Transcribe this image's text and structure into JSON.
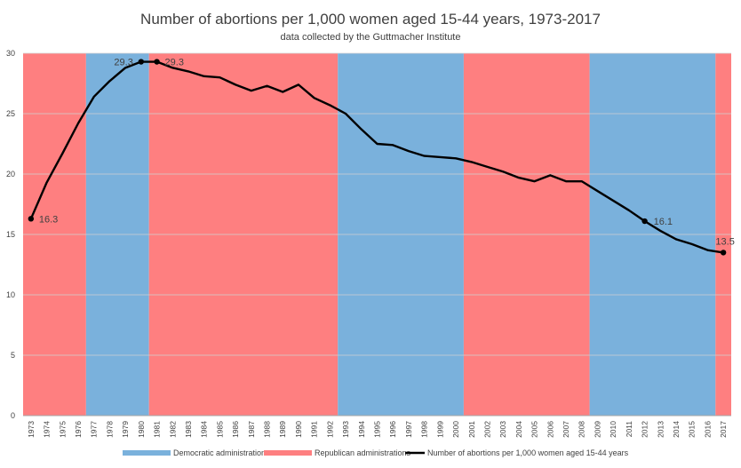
{
  "chart_data": {
    "type": "line",
    "title": "Number of abortions per 1,000 women aged 15-44 years, 1973-2017",
    "subtitle": "data collected by the Guttmacher  Institute",
    "ylim": [
      0,
      30
    ],
    "yticks": [
      "0",
      "5",
      "10",
      "15",
      "20",
      "25",
      "30"
    ],
    "grid": true,
    "legend_position": "bottom",
    "categories": [
      "1973",
      "1974",
      "1975",
      "1976",
      "1977",
      "1978",
      "1979",
      "1980",
      "1981",
      "1982",
      "1983",
      "1984",
      "1985",
      "1986",
      "1987",
      "1988",
      "1989",
      "1990",
      "1991",
      "1992",
      "1993",
      "1994",
      "1995",
      "1996",
      "1997",
      "1998",
      "1999",
      "2000",
      "2001",
      "2002",
      "2003",
      "2004",
      "2005",
      "2006",
      "2007",
      "2008",
      "2009",
      "2010",
      "2011",
      "2012",
      "2013",
      "2014",
      "2015",
      "2016",
      "2017"
    ],
    "series": [
      {
        "name": "Number of abortions per 1,000 women aged 15-44 years",
        "color": "#000000",
        "values": [
          16.3,
          19.3,
          21.7,
          24.2,
          26.4,
          27.7,
          28.8,
          29.3,
          29.3,
          28.8,
          28.5,
          28.1,
          28.0,
          27.4,
          26.9,
          27.3,
          26.8,
          27.4,
          26.3,
          25.7,
          25.0,
          23.7,
          22.5,
          22.4,
          21.9,
          21.5,
          21.4,
          21.3,
          21.0,
          20.6,
          20.2,
          19.7,
          19.4,
          19.9,
          19.4,
          19.4,
          18.6,
          17.8,
          17.0,
          16.1,
          15.3,
          14.6,
          14.2,
          13.7,
          13.5
        ]
      }
    ],
    "labeled_points": [
      {
        "year": "1973",
        "text": "16.3"
      },
      {
        "year": "1980",
        "text": "29.3"
      },
      {
        "year": "1981",
        "text": "29.3"
      },
      {
        "year": "2012",
        "text": "16.1"
      },
      {
        "year": "2017",
        "text": "13.5"
      }
    ],
    "administrations": [
      {
        "party": "Republican",
        "from": "1973",
        "to": "1976"
      },
      {
        "party": "Democratic",
        "from": "1977",
        "to": "1980"
      },
      {
        "party": "Republican",
        "from": "1981",
        "to": "1992"
      },
      {
        "party": "Democratic",
        "from": "1993",
        "to": "2000"
      },
      {
        "party": "Republican",
        "from": "2001",
        "to": "2008"
      },
      {
        "party": "Democratic",
        "from": "2009",
        "to": "2016"
      },
      {
        "party": "Republican",
        "from": "2017",
        "to": "2017"
      }
    ],
    "colors": {
      "Democratic": "#7ab1dc",
      "Republican": "#fe7f80",
      "line": "#000000",
      "grid": "#d0d0d0",
      "text": "#404040"
    },
    "legend": [
      {
        "key": "Democratic",
        "label": "Democratic administrations"
      },
      {
        "key": "Republican",
        "label": "Republican administrations"
      },
      {
        "key": "line",
        "label": "Number of abortions per 1,000 women aged 15-44 years"
      }
    ]
  }
}
